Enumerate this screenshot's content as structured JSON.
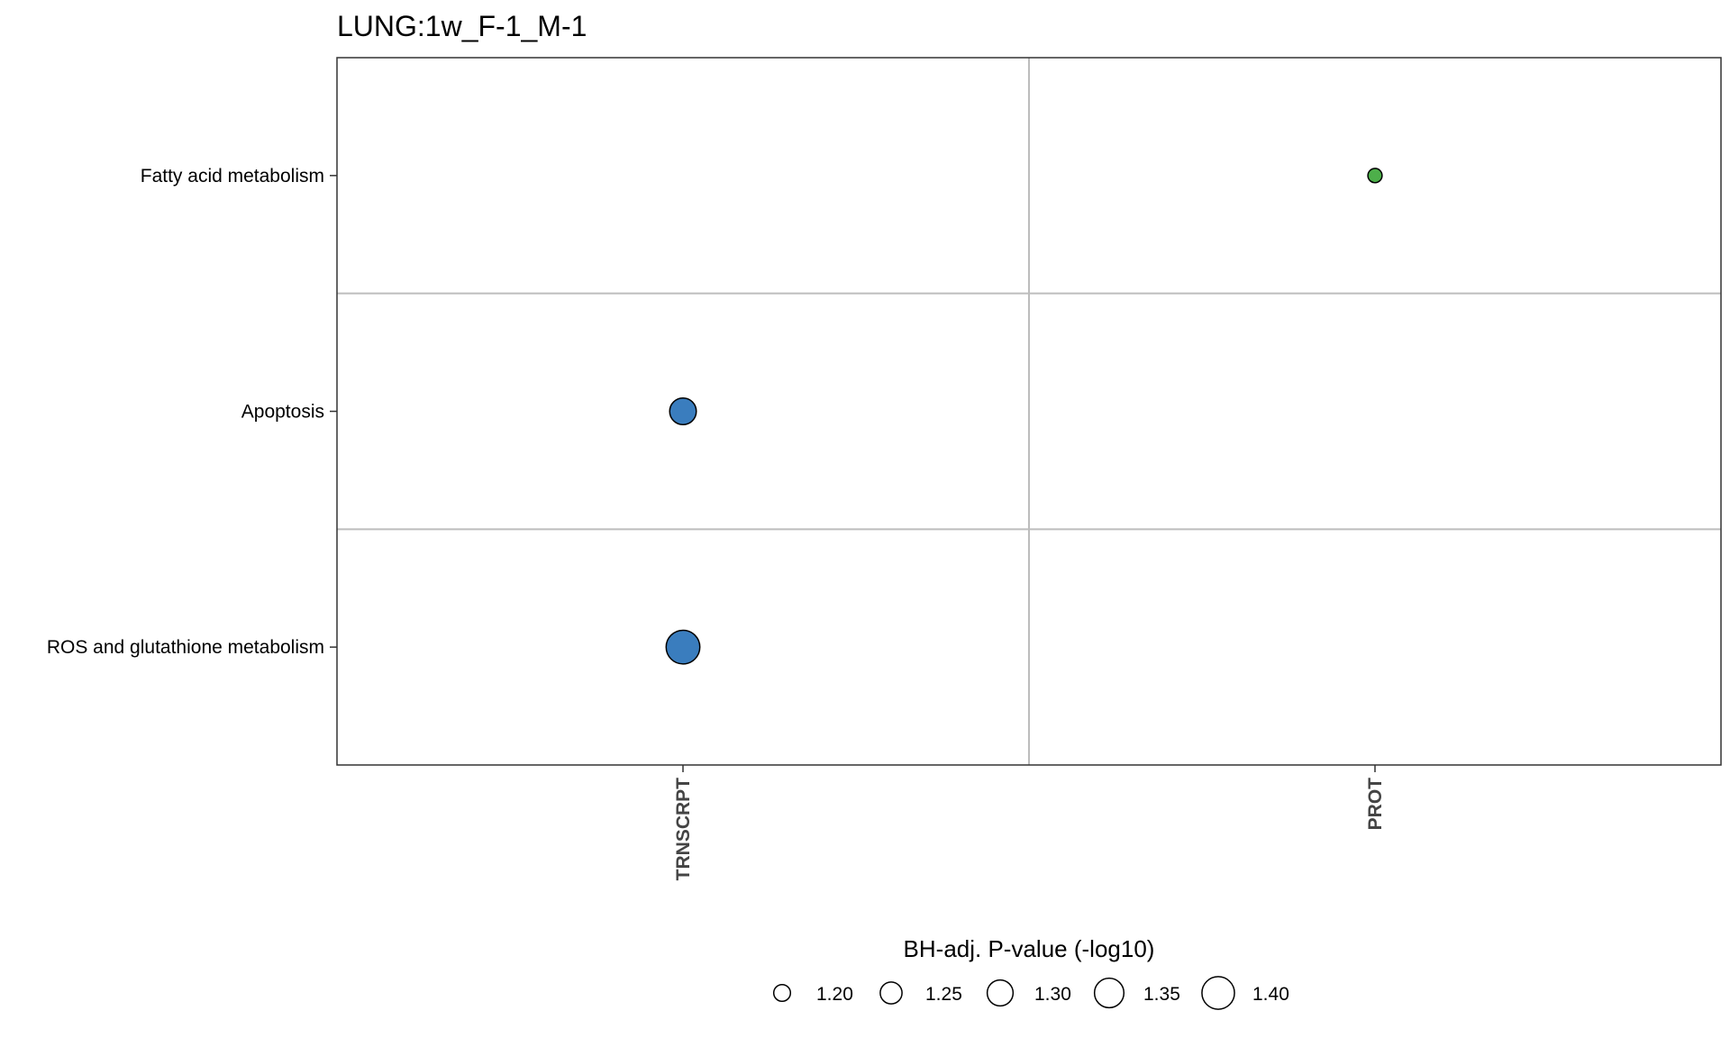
{
  "chart_data": {
    "type": "scatter",
    "title": "LUNG:1w_F-1_M-1",
    "xlabel": "",
    "ylabel": "",
    "x_categories": [
      "TRNSCRPT",
      "PROT"
    ],
    "y_categories": [
      "Fatty acid metabolism",
      "Apoptosis",
      "ROS and glutathione metabolism"
    ],
    "points": [
      {
        "x": "PROT",
        "y": "Fatty acid metabolism",
        "size_value": 1.18,
        "color": "#4DAF4A"
      },
      {
        "x": "TRNSCRPT",
        "y": "Apoptosis",
        "size_value": 1.31,
        "color": "#3A7DBE"
      },
      {
        "x": "TRNSCRPT",
        "y": "ROS and glutathione metabolism",
        "size_value": 1.42,
        "color": "#3A7DBE"
      }
    ],
    "size_legend": {
      "title": "BH-adj. P-value (-log10)",
      "values": [
        1.2,
        1.25,
        1.3,
        1.35,
        1.4
      ],
      "labels": [
        "1.20",
        "1.25",
        "1.30",
        "1.35",
        "1.40"
      ],
      "placement": "bottom"
    },
    "grid": true
  }
}
